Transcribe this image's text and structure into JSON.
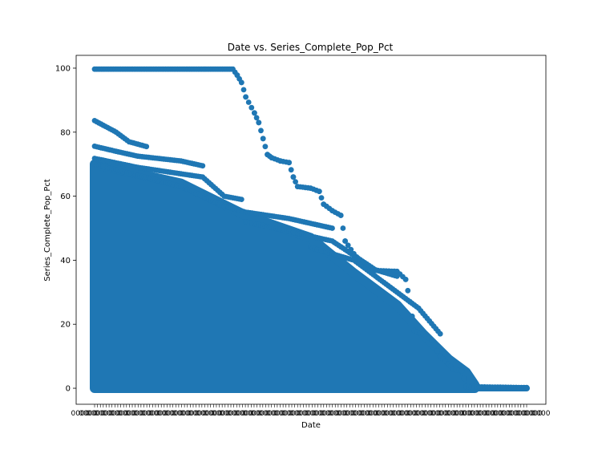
{
  "chart_data": {
    "type": "scatter",
    "title": "Date vs. Series_Complete_Pop_Pct",
    "xlabel": "Date",
    "ylabel": "Series_Complete_Pop_Pct",
    "x_tick_labels": "dates (unreadable, overlapping)",
    "ylim": [
      -5,
      104
    ],
    "y_ticks": [
      0,
      20,
      40,
      60,
      80,
      100
    ],
    "grid": false,
    "marker_color": "#1f77b4",
    "series": [
      {
        "values_description": "Each date index (0 = first date, 1 = last date) with cumulative percentage",
        "upper_envelope": [
          [
            0.0,
            99.7
          ],
          [
            0.32,
            99.7
          ],
          [
            0.33,
            97.8
          ],
          [
            0.34,
            95.5
          ],
          [
            0.35,
            91
          ],
          [
            0.37,
            86
          ],
          [
            0.38,
            83
          ],
          [
            0.39,
            78
          ],
          [
            0.4,
            73
          ],
          [
            0.41,
            72
          ],
          [
            0.43,
            71
          ],
          [
            0.45,
            70.5
          ],
          [
            0.46,
            66
          ],
          [
            0.47,
            63
          ],
          [
            0.5,
            62.5
          ],
          [
            0.52,
            61.5
          ],
          [
            0.53,
            57.5
          ],
          [
            0.55,
            55.5
          ],
          [
            0.57,
            54
          ],
          [
            0.58,
            46
          ],
          [
            0.6,
            42
          ],
          [
            0.62,
            39
          ],
          [
            0.65,
            36.8
          ],
          [
            0.7,
            36.5
          ],
          [
            0.72,
            34
          ],
          [
            0.73,
            27
          ],
          [
            0.74,
            18
          ],
          [
            0.76,
            17
          ],
          [
            0.78,
            15
          ],
          [
            0.8,
            10
          ],
          [
            0.83,
            6
          ],
          [
            0.85,
            5.5
          ],
          [
            0.86,
            0.5
          ],
          [
            1.0,
            0.2
          ]
        ],
        "band_83": [
          [
            0.0,
            83.6
          ],
          [
            0.05,
            80
          ],
          [
            0.08,
            77
          ],
          [
            0.12,
            75.5
          ]
        ],
        "band_75": [
          [
            0.0,
            75.6
          ],
          [
            0.05,
            74
          ],
          [
            0.1,
            72.5
          ],
          [
            0.2,
            71
          ],
          [
            0.25,
            69.5
          ]
        ],
        "band_71": [
          [
            0.0,
            71.8
          ],
          [
            0.1,
            69
          ],
          [
            0.2,
            67
          ],
          [
            0.25,
            66
          ],
          [
            0.3,
            60
          ],
          [
            0.34,
            59
          ]
        ],
        "band_60": [
          [
            0.0,
            70
          ],
          [
            0.2,
            63
          ],
          [
            0.3,
            57
          ],
          [
            0.35,
            55
          ],
          [
            0.45,
            53
          ],
          [
            0.55,
            50
          ]
        ],
        "band_50": [
          [
            0.35,
            52
          ],
          [
            0.45,
            49
          ],
          [
            0.55,
            46
          ],
          [
            0.65,
            37
          ],
          [
            0.7,
            35
          ]
        ],
        "band_40": [
          [
            0.5,
            44
          ],
          [
            0.6,
            40
          ],
          [
            0.66,
            34
          ],
          [
            0.75,
            25
          ],
          [
            0.8,
            17
          ]
        ],
        "band_dense_top": [
          [
            0.0,
            70
          ],
          [
            0.2,
            64
          ],
          [
            0.35,
            54
          ],
          [
            0.5,
            47
          ],
          [
            0.6,
            36
          ],
          [
            0.7,
            26
          ],
          [
            0.76,
            17
          ],
          [
            0.82,
            9
          ],
          [
            0.86,
            5
          ],
          [
            0.88,
            1
          ]
        ],
        "baseline_x_max": 1.0
      }
    ]
  }
}
